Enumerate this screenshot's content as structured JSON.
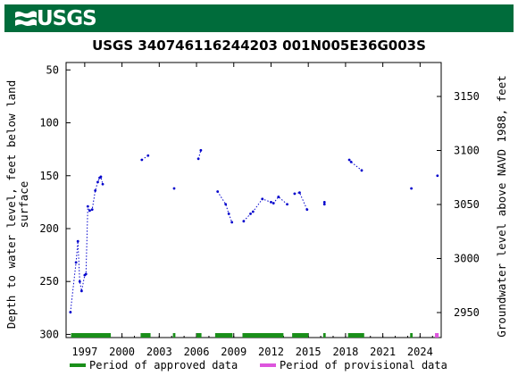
{
  "header": {
    "agency": "USGS"
  },
  "chart_data": {
    "type": "scatter",
    "title": "USGS 340746116244203 001N005E36G003S",
    "ylabel_left": "Depth to water level, feet below land surface",
    "ylabel_right": "Groundwater level above NAVD 1988, feet",
    "y_left_range": [
      300,
      50
    ],
    "y_right_range": [
      2920,
      3173
    ],
    "x_range": [
      1995.5,
      2025.7
    ],
    "x_ticks": [
      "1997",
      "2000",
      "2003",
      "2006",
      "2009",
      "2012",
      "2015",
      "2018",
      "2021",
      "2024"
    ],
    "y_left_ticks": [
      "50",
      "100",
      "150",
      "200",
      "250",
      "300"
    ],
    "y_right_ticks": [
      "2950",
      "3000",
      "3050",
      "3100",
      "3150"
    ],
    "series": [
      {
        "name": "Groundwater level",
        "color": "#0000cc",
        "marker": "dot",
        "segments": [
          [
            [
              1995.85,
              279
            ],
            [
              1996.3,
              232
            ],
            [
              1996.45,
              212
            ],
            [
              1996.6,
              250
            ],
            [
              1996.75,
              259
            ],
            [
              1997.0,
              244
            ],
            [
              1997.1,
              243
            ],
            [
              1997.25,
              179
            ],
            [
              1997.4,
              183
            ],
            [
              1997.6,
              182
            ],
            [
              1997.85,
              164
            ],
            [
              1998.05,
              156
            ],
            [
              1998.2,
              152
            ],
            [
              1998.3,
              151
            ],
            [
              1998.45,
              158
            ]
          ],
          [
            [
              2001.6,
              135
            ],
            [
              2002.1,
              131
            ]
          ],
          [
            [
              2004.2,
              162
            ]
          ],
          [
            [
              2006.15,
              134
            ],
            [
              2006.35,
              126
            ]
          ],
          [
            [
              2007.7,
              165
            ],
            [
              2008.35,
              177
            ],
            [
              2008.6,
              186
            ],
            [
              2008.85,
              194
            ]
          ],
          [
            [
              2009.8,
              193
            ],
            [
              2010.35,
              186
            ],
            [
              2010.55,
              184
            ],
            [
              2011.3,
              172
            ],
            [
              2012.0,
              175
            ],
            [
              2012.2,
              176
            ],
            [
              2012.6,
              170
            ],
            [
              2013.3,
              177
            ]
          ],
          [
            [
              2013.9,
              167
            ],
            [
              2014.3,
              166
            ],
            [
              2014.9,
              182
            ]
          ],
          [
            [
              2016.3,
              177
            ],
            [
              2016.3,
              175
            ]
          ],
          [
            [
              2018.3,
              135
            ],
            [
              2018.45,
              137
            ],
            [
              2019.3,
              145
            ]
          ],
          [
            [
              2023.3,
              162
            ]
          ],
          [
            [
              2025.4,
              150
            ]
          ]
        ]
      }
    ],
    "approved_periods": [
      [
        1995.9,
        1999.1
      ],
      [
        2001.5,
        2002.3
      ],
      [
        2004.1,
        2004.3
      ],
      [
        2006.0,
        2006.4
      ],
      [
        2007.5,
        2008.9
      ],
      [
        2009.7,
        2013.0
      ],
      [
        2013.7,
        2015.0
      ],
      [
        2016.2,
        2016.4
      ],
      [
        2018.2,
        2019.5
      ],
      [
        2023.2,
        2023.4
      ]
    ],
    "provisional_periods": [
      [
        2025.2,
        2025.5
      ]
    ],
    "legend": [
      {
        "label": "Period of approved data",
        "color": "#1a8f1a"
      },
      {
        "label": "Period of provisional data",
        "color": "#dd55dd"
      }
    ],
    "legend_position": "bottom"
  }
}
